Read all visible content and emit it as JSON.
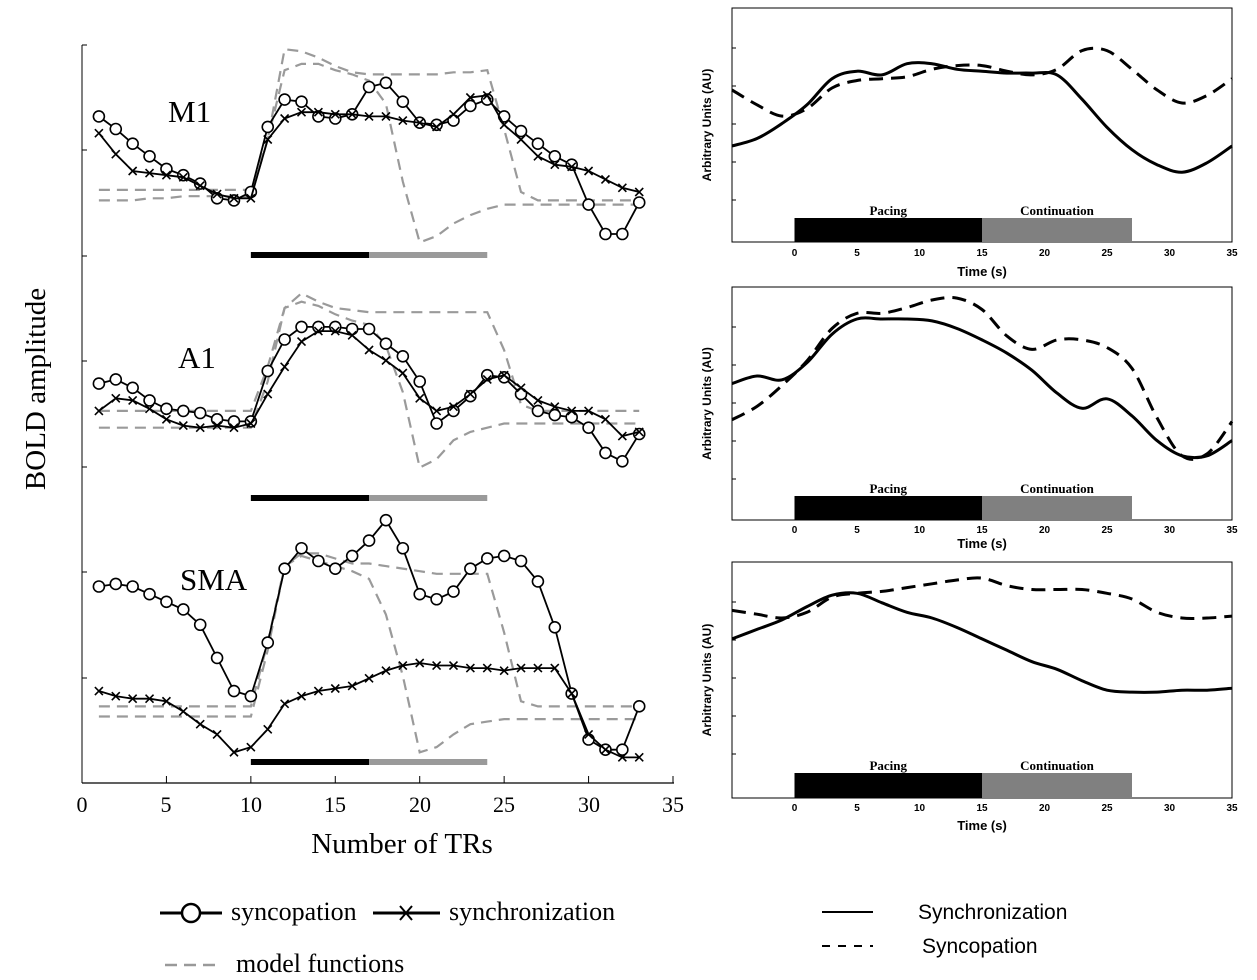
{
  "left_panel": {
    "ylabel": "BOLD amplitude",
    "xlabel": "Number of TRs",
    "xticks": [
      "0",
      "5",
      "10",
      "15",
      "20",
      "25",
      "30",
      "35"
    ],
    "legend": {
      "syncopation": "syncopation",
      "synchronization": "synchronization",
      "model": "model functions"
    }
  },
  "right_panel": {
    "ylabel": "Arbitrary Units (AU)",
    "xlabel": "Time (s)",
    "xticks": [
      "0",
      "5",
      "10",
      "15",
      "20",
      "25",
      "30",
      "35"
    ],
    "pacing_label": "Pacing",
    "continuation_label": "Continuation",
    "legend": {
      "synchronization": "Synchronization",
      "syncopation": "Syncopation"
    }
  },
  "chart_data": [
    {
      "type": "line",
      "title": "",
      "region_label": "M1",
      "xlabel": "Number of TRs",
      "ylabel": "BOLD amplitude",
      "xlim": [
        0,
        35
      ],
      "ylim": [
        0,
        1
      ],
      "x": [
        1,
        2,
        3,
        4,
        5,
        6,
        7,
        8,
        9,
        10,
        11,
        12,
        13,
        14,
        15,
        16,
        17,
        18,
        19,
        20,
        21,
        22,
        23,
        24,
        25,
        26,
        27,
        28,
        29,
        30,
        31,
        32,
        33
      ],
      "series": [
        {
          "name": "syncopation",
          "marker": "circle",
          "values": [
            0.66,
            0.6,
            0.53,
            0.47,
            0.41,
            0.38,
            0.34,
            0.27,
            0.26,
            0.3,
            0.61,
            0.74,
            0.73,
            0.66,
            0.65,
            0.67,
            0.8,
            0.82,
            0.73,
            0.63,
            0.62,
            0.64,
            0.71,
            0.74,
            0.66,
            0.59,
            0.53,
            0.47,
            0.43,
            0.24,
            0.1,
            0.1,
            0.25
          ]
        },
        {
          "name": "synchronization",
          "marker": "x",
          "values": [
            0.58,
            0.48,
            0.4,
            0.39,
            0.38,
            0.37,
            0.33,
            0.29,
            0.27,
            0.27,
            0.55,
            0.65,
            0.68,
            0.68,
            0.67,
            0.67,
            0.66,
            0.66,
            0.64,
            0.63,
            0.61,
            0.67,
            0.75,
            0.76,
            0.62,
            0.55,
            0.47,
            0.43,
            0.42,
            0.4,
            0.36,
            0.32,
            0.3
          ]
        },
        {
          "name": "model functions",
          "values": [
            0.26,
            0.26,
            0.26,
            0.27,
            0.27,
            0.28,
            0.28,
            0.28,
            0.28,
            0.28,
            0.55,
            0.98,
            0.97,
            0.94,
            0.9,
            0.87,
            0.86,
            0.86,
            0.86,
            0.86,
            0.86,
            0.87,
            0.87,
            0.88,
            0.6,
            0.3,
            0.26,
            0.26,
            0.26,
            0.26,
            0.26,
            0.26,
            0.26
          ]
        },
        {
          "name": "model functions",
          "values": [
            0.31,
            0.31,
            0.31,
            0.31,
            0.31,
            0.31,
            0.31,
            0.31,
            0.31,
            0.31,
            0.55,
            0.88,
            0.91,
            0.91,
            0.88,
            0.86,
            0.83,
            0.72,
            0.35,
            0.06,
            0.09,
            0.15,
            0.19,
            0.22,
            0.24,
            0.24,
            0.24,
            0.24,
            0.24,
            0.24,
            0.24,
            0.24,
            0.24
          ]
        }
      ]
    },
    {
      "type": "line",
      "title": "",
      "region_label": "A1",
      "xlabel": "Number of TRs",
      "ylabel": "BOLD amplitude",
      "xlim": [
        0,
        35
      ],
      "ylim": [
        0,
        1
      ],
      "x": [
        1,
        2,
        3,
        4,
        5,
        6,
        7,
        8,
        9,
        10,
        11,
        12,
        13,
        14,
        15,
        16,
        17,
        18,
        19,
        20,
        21,
        22,
        23,
        24,
        25,
        26,
        27,
        28,
        29,
        30,
        31,
        32,
        33
      ],
      "series": [
        {
          "name": "syncopation",
          "marker": "circle",
          "values": [
            0.54,
            0.56,
            0.52,
            0.46,
            0.42,
            0.41,
            0.4,
            0.37,
            0.36,
            0.36,
            0.6,
            0.75,
            0.81,
            0.81,
            0.81,
            0.8,
            0.8,
            0.73,
            0.67,
            0.55,
            0.35,
            0.41,
            0.48,
            0.58,
            0.57,
            0.49,
            0.41,
            0.39,
            0.38,
            0.33,
            0.21,
            0.17,
            0.3
          ]
        },
        {
          "name": "synchronization",
          "marker": "x",
          "values": [
            0.41,
            0.47,
            0.46,
            0.42,
            0.37,
            0.34,
            0.33,
            0.34,
            0.33,
            0.35,
            0.49,
            0.62,
            0.74,
            0.79,
            0.79,
            0.77,
            0.7,
            0.65,
            0.59,
            0.47,
            0.41,
            0.43,
            0.49,
            0.56,
            0.58,
            0.52,
            0.46,
            0.43,
            0.41,
            0.41,
            0.37,
            0.29,
            0.31
          ]
        },
        {
          "name": "model functions",
          "values": [
            0.41,
            0.41,
            0.41,
            0.41,
            0.41,
            0.41,
            0.41,
            0.41,
            0.41,
            0.41,
            0.62,
            0.9,
            0.97,
            0.93,
            0.9,
            0.89,
            0.88,
            0.88,
            0.88,
            0.88,
            0.88,
            0.88,
            0.88,
            0.88,
            0.7,
            0.44,
            0.41,
            0.41,
            0.41,
            0.41,
            0.41,
            0.41,
            0.41
          ]
        },
        {
          "name": "model functions",
          "values": [
            0.33,
            0.33,
            0.33,
            0.33,
            0.33,
            0.33,
            0.33,
            0.33,
            0.33,
            0.33,
            0.55,
            0.9,
            0.93,
            0.91,
            0.87,
            0.84,
            0.82,
            0.72,
            0.5,
            0.14,
            0.18,
            0.27,
            0.31,
            0.33,
            0.35,
            0.35,
            0.35,
            0.35,
            0.35,
            0.35,
            0.35,
            0.35,
            0.35
          ]
        }
      ]
    },
    {
      "type": "line",
      "title": "",
      "region_label": "SMA",
      "xlabel": "Number of TRs",
      "ylabel": "BOLD amplitude",
      "xlim": [
        0,
        35
      ],
      "ylim": [
        0,
        1
      ],
      "x": [
        1,
        2,
        3,
        4,
        5,
        6,
        7,
        8,
        9,
        10,
        11,
        12,
        13,
        14,
        15,
        16,
        17,
        18,
        19,
        20,
        21,
        22,
        23,
        24,
        25,
        26,
        27,
        28,
        29,
        30,
        31,
        32,
        33
      ],
      "series": [
        {
          "name": "syncopation",
          "marker": "circle",
          "values": [
            0.7,
            0.71,
            0.7,
            0.67,
            0.64,
            0.61,
            0.55,
            0.42,
            0.29,
            0.27,
            0.48,
            0.77,
            0.85,
            0.8,
            0.77,
            0.82,
            0.88,
            0.96,
            0.85,
            0.67,
            0.65,
            0.68,
            0.77,
            0.81,
            0.82,
            0.8,
            0.72,
            0.54,
            0.28,
            0.1,
            0.06,
            0.06,
            0.23
          ]
        },
        {
          "name": "synchronization",
          "marker": "x",
          "values": [
            0.29,
            0.27,
            0.26,
            0.26,
            0.25,
            0.21,
            0.16,
            0.12,
            0.05,
            0.07,
            0.14,
            0.24,
            0.27,
            0.29,
            0.3,
            0.31,
            0.34,
            0.37,
            0.39,
            0.4,
            0.39,
            0.39,
            0.38,
            0.38,
            0.37,
            0.38,
            0.38,
            0.38,
            0.28,
            0.12,
            0.06,
            0.03,
            0.03
          ]
        },
        {
          "name": "model functions",
          "values": [
            0.23,
            0.23,
            0.23,
            0.23,
            0.23,
            0.23,
            0.23,
            0.23,
            0.23,
            0.23,
            0.48,
            0.78,
            0.83,
            0.83,
            0.81,
            0.79,
            0.79,
            0.78,
            0.77,
            0.76,
            0.75,
            0.75,
            0.75,
            0.75,
            0.52,
            0.25,
            0.23,
            0.23,
            0.23,
            0.23,
            0.23,
            0.23,
            0.23
          ]
        },
        {
          "name": "model functions",
          "values": [
            0.19,
            0.19,
            0.19,
            0.19,
            0.19,
            0.19,
            0.19,
            0.19,
            0.19,
            0.19,
            0.45,
            0.78,
            0.82,
            0.8,
            0.78,
            0.76,
            0.73,
            0.59,
            0.35,
            0.05,
            0.07,
            0.12,
            0.16,
            0.17,
            0.18,
            0.18,
            0.18,
            0.18,
            0.18,
            0.18,
            0.18,
            0.18,
            0.18
          ]
        }
      ]
    },
    {
      "type": "line",
      "title": "",
      "xlabel": "Time (s)",
      "ylabel": "Arbitrary Units (AU)",
      "xlim": [
        -5,
        35
      ],
      "ylim": [
        0,
        1
      ],
      "x": [
        -5,
        -3,
        -1,
        1,
        3,
        5,
        7,
        9,
        11,
        13,
        15,
        17,
        19,
        21,
        23,
        25,
        27,
        29,
        31,
        33,
        35
      ],
      "series": [
        {
          "name": "Synchronization",
          "style": "solid",
          "values": [
            0.46,
            0.5,
            0.58,
            0.68,
            0.82,
            0.86,
            0.84,
            0.9,
            0.9,
            0.87,
            0.86,
            0.85,
            0.85,
            0.84,
            0.71,
            0.56,
            0.44,
            0.36,
            0.32,
            0.37,
            0.46
          ]
        },
        {
          "name": "Syncopation",
          "style": "dashed",
          "values": [
            0.76,
            0.68,
            0.62,
            0.66,
            0.77,
            0.81,
            0.82,
            0.83,
            0.87,
            0.89,
            0.89,
            0.86,
            0.84,
            0.87,
            0.97,
            0.97,
            0.87,
            0.76,
            0.69,
            0.73,
            0.82
          ]
        }
      ]
    },
    {
      "type": "line",
      "title": "",
      "xlabel": "Time (s)",
      "ylabel": "Arbitrary Units (AU)",
      "xlim": [
        -5,
        35
      ],
      "ylim": [
        0,
        1
      ],
      "x": [
        -5,
        -3,
        -1,
        1,
        3,
        5,
        7,
        9,
        11,
        13,
        15,
        17,
        19,
        21,
        23,
        25,
        27,
        29,
        31,
        33,
        35
      ],
      "series": [
        {
          "name": "Synchronization",
          "style": "solid",
          "values": [
            0.56,
            0.6,
            0.58,
            0.67,
            0.82,
            0.9,
            0.9,
            0.9,
            0.89,
            0.85,
            0.79,
            0.72,
            0.63,
            0.51,
            0.43,
            0.48,
            0.39,
            0.26,
            0.18,
            0.18,
            0.26
          ]
        },
        {
          "name": "Syncopation",
          "style": "dashed",
          "values": [
            0.37,
            0.44,
            0.55,
            0.68,
            0.85,
            0.93,
            0.93,
            0.96,
            1.0,
            1.01,
            0.95,
            0.81,
            0.74,
            0.79,
            0.79,
            0.75,
            0.64,
            0.38,
            0.18,
            0.19,
            0.36
          ]
        }
      ]
    },
    {
      "type": "line",
      "title": "",
      "xlabel": "Time (s)",
      "ylabel": "Arbitrary Units (AU)",
      "xlim": [
        -5,
        35
      ],
      "ylim": [
        0,
        1
      ],
      "x": [
        -5,
        -3,
        -1,
        1,
        3,
        5,
        7,
        9,
        11,
        13,
        15,
        17,
        19,
        21,
        23,
        25,
        27,
        29,
        31,
        33,
        35
      ],
      "series": [
        {
          "name": "Synchronization",
          "style": "solid",
          "values": [
            0.69,
            0.74,
            0.79,
            0.86,
            0.92,
            0.93,
            0.88,
            0.83,
            0.8,
            0.75,
            0.69,
            0.63,
            0.57,
            0.53,
            0.47,
            0.42,
            0.41,
            0.41,
            0.42,
            0.42,
            0.43
          ]
        },
        {
          "name": "Syncopation",
          "style": "dashed",
          "values": [
            0.84,
            0.82,
            0.8,
            0.83,
            0.91,
            0.93,
            0.94,
            0.96,
            0.98,
            1.0,
            1.01,
            0.97,
            0.95,
            0.95,
            0.95,
            0.93,
            0.9,
            0.83,
            0.8,
            0.8,
            0.81
          ]
        }
      ]
    }
  ]
}
